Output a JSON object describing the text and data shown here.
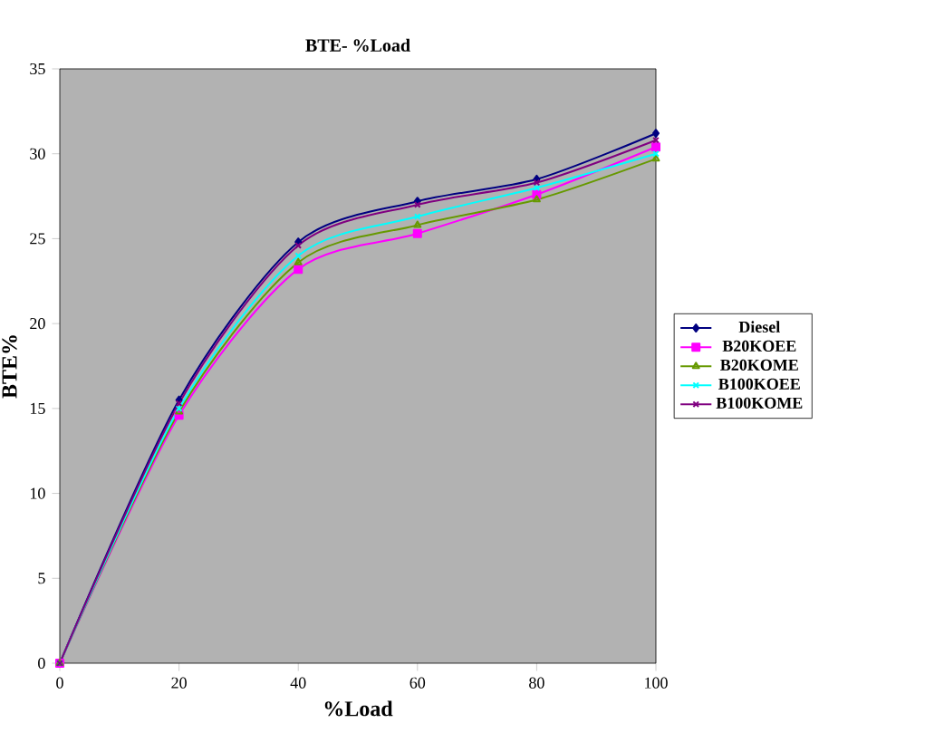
{
  "chart_data": {
    "type": "line",
    "title": "BTE- %Load",
    "xlabel": "%Load",
    "ylabel": "BTE%",
    "x": [
      0,
      20,
      40,
      60,
      80,
      100
    ],
    "xlim": [
      0,
      100
    ],
    "xticks": [
      0,
      20,
      40,
      60,
      80,
      100
    ],
    "ylim": [
      0,
      35
    ],
    "yticks": [
      0,
      5,
      10,
      15,
      20,
      25,
      30,
      35
    ],
    "legend": "right",
    "grid": false,
    "series": [
      {
        "name": "Diesel",
        "color": "#000080",
        "marker": "diamond",
        "values": [
          0,
          15.5,
          24.8,
          27.2,
          28.5,
          31.2
        ]
      },
      {
        "name": "B20KOEE",
        "color": "#ff00ff",
        "marker": "square",
        "values": [
          0,
          14.6,
          23.2,
          25.3,
          27.6,
          30.4
        ]
      },
      {
        "name": "B20KOME",
        "color": "#669900",
        "marker": "triangle",
        "values": [
          0,
          14.8,
          23.6,
          25.8,
          27.3,
          29.7
        ]
      },
      {
        "name": "B100KOEE",
        "color": "#00ffff",
        "marker": "cross",
        "values": [
          0,
          15.0,
          24.0,
          26.3,
          28.0,
          30.0
        ]
      },
      {
        "name": "B100KOME",
        "color": "#800080",
        "marker": "cross",
        "values": [
          0,
          15.3,
          24.6,
          27.0,
          28.3,
          30.8
        ]
      }
    ]
  }
}
